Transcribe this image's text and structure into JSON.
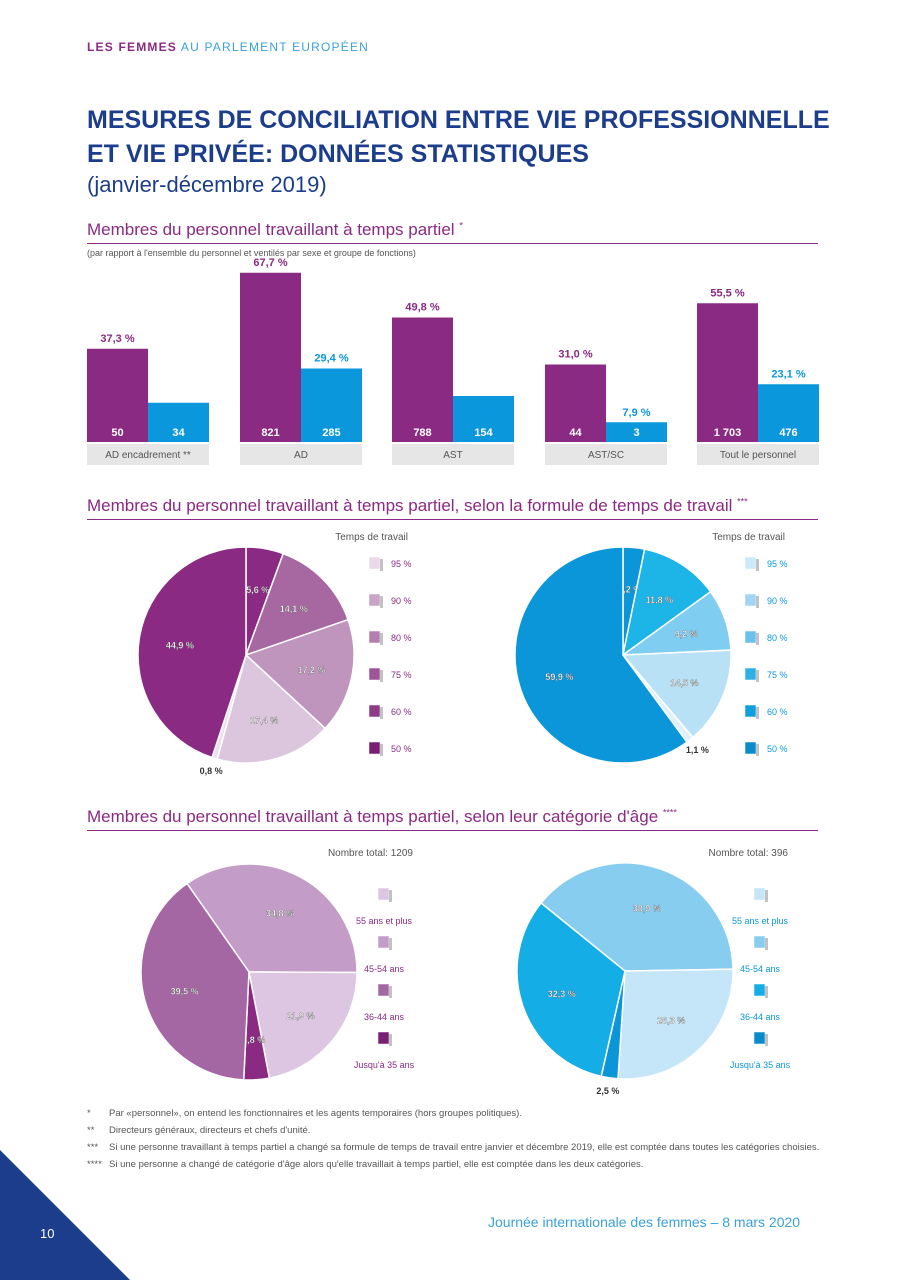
{
  "header": {
    "part1": "LES FEMMES",
    "part2": "AU PARLEMENT EUROPÉEN"
  },
  "title": {
    "line1": "MESURES DE CONCILIATION ENTRE VIE PROFESSIONNELLE",
    "line2": "ET VIE PRIVÉE: DONNÉES STATISTIQUES",
    "subtitle": "(janvier-décembre 2019)"
  },
  "sections": {
    "s1": {
      "title": "Membres du personnel travaillant à temps partiel",
      "mark": "*",
      "note": "(par rapport à l'ensemble du personnel et ventilés par sexe et groupe de fonctions)"
    },
    "s2": {
      "title": "Membres du personnel travaillant à temps partiel, selon la formule de temps de travail",
      "mark": "***"
    },
    "s3": {
      "title": "Membres du personnel travaillant à temps partiel, selon leur catégorie d'âge",
      "mark": "****"
    }
  },
  "chart_data": [
    {
      "type": "bar",
      "categories": [
        "AD encadrement **",
        "AD",
        "AST",
        "AST/SC",
        "Tout le personnel"
      ],
      "series": [
        {
          "color": "#8b2a83",
          "values": [
            37.3,
            67.7,
            49.8,
            31.0,
            55.5
          ],
          "labels": [
            "37,3 %",
            "67,7 %",
            "49,8 %",
            "31,0 %",
            "55,5 %"
          ],
          "counts": [
            "50",
            "821",
            "788",
            "44",
            "1 703"
          ]
        },
        {
          "color": "#0b97dc",
          "values": [
            15.7,
            29.4,
            18.4,
            7.9,
            23.1
          ],
          "labels": [
            "15,7 %",
            "29,4 %",
            "18,4 %",
            "7,9 %",
            "23,1 %"
          ],
          "counts": [
            "34",
            "285",
            "154",
            "3",
            "476"
          ]
        }
      ]
    },
    {
      "type": "pie",
      "legend_title": "Temps de travail",
      "legend": [
        "95 %",
        "90 %",
        "80 %",
        "75 %",
        "60 %",
        "50 %"
      ],
      "slices": [
        {
          "value": 5.6,
          "label": "5,6 %",
          "color": "#8b2a83"
        },
        {
          "value": 14.1,
          "label": "14,1 %",
          "color": "#a768a2"
        },
        {
          "value": 17.2,
          "label": "17,2 %",
          "color": "#bf94bd"
        },
        {
          "value": 17.4,
          "label": "17,4 %",
          "color": "#dcc6dd"
        },
        {
          "value": 0.8,
          "label": "0,8 %",
          "color": "#ecdfee"
        },
        {
          "value": 44.9,
          "label": "44,9 %",
          "color": "#8b2a83"
        }
      ]
    },
    {
      "type": "pie",
      "legend_title": "Temps de travail",
      "legend": [
        "95 %",
        "90 %",
        "80 %",
        "75 %",
        "60 %",
        "50 %"
      ],
      "slices": [
        {
          "value": 3.2,
          "label": "3,2 %",
          "color": "#0a96d8"
        },
        {
          "value": 11.8,
          "label": "11,8 %",
          "color": "#1db4e8"
        },
        {
          "value": 9.2,
          "label": "9,2 %",
          "color": "#7fcdf0"
        },
        {
          "value": 14.5,
          "label": "14,5 %",
          "color": "#b8e1f6"
        },
        {
          "value": 1.1,
          "label": "1,1 %",
          "color": "#dff2fb"
        },
        {
          "value": 59.9,
          "label": "59,9 %",
          "color": "#0a96d8"
        }
      ]
    },
    {
      "type": "pie",
      "legend_title": "Nombre total: 1209",
      "legend": [
        "55 ans et plus",
        "45-54 ans",
        "36-44 ans",
        "Jusqu'à 35 ans"
      ],
      "slices": [
        {
          "value": 34.8,
          "label": "34,8 %",
          "color": "#c39cc8"
        },
        {
          "value": 21.9,
          "label": "21,9 %",
          "color": "#dcc6e2"
        },
        {
          "value": 3.8,
          "label": "3,8 %",
          "color": "#8b2a83"
        },
        {
          "value": 39.5,
          "label": "39,5 %",
          "color": "#a567a4"
        }
      ]
    },
    {
      "type": "pie",
      "legend_title": "Nombre total: 396",
      "legend": [
        "55 ans et plus",
        "45-54 ans",
        "36-44 ans",
        "Jusqu'à 35 ans"
      ],
      "slices": [
        {
          "value": 38.9,
          "label": "38,9 %",
          "color": "#86cdf0"
        },
        {
          "value": 26.3,
          "label": "26,3 %",
          "color": "#c4e6f8"
        },
        {
          "value": 2.5,
          "label": "2,5 %",
          "color": "#0a96d8"
        },
        {
          "value": 32.3,
          "label": "32,3 %",
          "color": "#14ade6"
        }
      ]
    }
  ],
  "footnotes": [
    {
      "mark": "*",
      "text": "Par «personnel», on entend les fonctionnaires et les agents temporaires (hors groupes politiques)."
    },
    {
      "mark": "**",
      "text": "Directeurs généraux, directeurs et chefs d'unité."
    },
    {
      "mark": "***",
      "text": "Si une personne travaillant à temps partiel a changé sa formule de temps de travail entre janvier et décembre 2019, elle est comptée dans toutes les catégories choisies."
    },
    {
      "mark": "****",
      "text": "Si une personne a changé de catégorie d'âge alors qu'elle travaillait à temps partiel, elle est comptée dans les deux catégories."
    }
  ],
  "footer": {
    "text": "Journée internationale des femmes – 8 mars 2020",
    "page": "10"
  }
}
